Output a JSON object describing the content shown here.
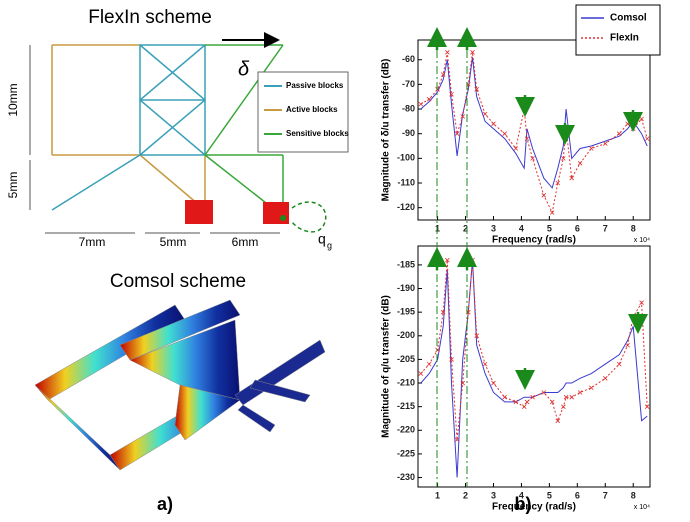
{
  "diagram": {
    "flexin_title": "FlexIn scheme",
    "comsol_title": "Comsol scheme",
    "legend": [
      "Passive blocks",
      "Active blocks",
      "Sensitive blocks"
    ],
    "delta": "δ",
    "dims": [
      "10mm",
      "5mm",
      "7mm",
      "5mm",
      "6mm"
    ],
    "q": "q",
    "q_sub": "g"
  },
  "panels": [
    "a)",
    "b)"
  ],
  "chart_data": [
    {
      "type": "line",
      "ylabel": "Magnitude of δ/u transfer (dB)",
      "xlabel": "Frequency (rad/s)",
      "x_multiplier": "x 10⁴",
      "xlim": [
        0.3,
        8.6
      ],
      "xticks": [
        1,
        2,
        3,
        4,
        5,
        6,
        7,
        8
      ],
      "ylim": [
        -125,
        -52
      ],
      "yticks": [
        -60,
        -70,
        -80,
        -90,
        -100,
        -110,
        -120
      ],
      "legend": "upper right",
      "x": [
        0.4,
        0.7,
        1.0,
        1.2,
        1.35,
        1.5,
        1.7,
        1.9,
        2.1,
        2.25,
        2.4,
        2.7,
        3.0,
        3.4,
        3.8,
        4.1,
        4.2,
        4.4,
        4.8,
        5.1,
        5.3,
        5.5,
        5.6,
        5.8,
        6.1,
        6.5,
        7.0,
        7.5,
        7.8,
        8.0,
        8.3,
        8.5
      ],
      "series": [
        {
          "name": "Comsol",
          "color": "#3a3ad0",
          "linestyle": "solid",
          "marker": "none",
          "values": [
            -80,
            -77,
            -73,
            -68,
            -60,
            -78,
            -99,
            -82,
            -72,
            -59,
            -75,
            -85,
            -88,
            -92,
            -98,
            -104,
            -88,
            -96,
            -108,
            -112,
            -104,
            -95,
            -80,
            -100,
            -96,
            -95,
            -93,
            -91,
            -88,
            -85,
            -90,
            -95
          ]
        },
        {
          "name": "FlexIn",
          "color": "#e03030",
          "linestyle": "dotted",
          "marker": "x",
          "values": [
            -78,
            -76,
            -72,
            -66,
            -57,
            -74,
            -90,
            -83,
            -70,
            -57,
            -72,
            -82,
            -86,
            -90,
            -96,
            -80,
            -92,
            -100,
            -115,
            -122,
            -110,
            -100,
            -88,
            -108,
            -102,
            -96,
            -94,
            -90,
            -86,
            -88,
            -84,
            -92
          ]
        }
      ]
    },
    {
      "type": "line",
      "ylabel": "Magnitude of q/u transfer (dB)",
      "xlabel": "Frequency (rad/s)",
      "x_multiplier": "x 10⁴",
      "xlim": [
        0.3,
        8.6
      ],
      "xticks": [
        1,
        2,
        3,
        4,
        5,
        6,
        7,
        8
      ],
      "ylim": [
        -232,
        -181
      ],
      "yticks": [
        -185,
        -190,
        -195,
        -200,
        -205,
        -210,
        -215,
        -220,
        -225,
        -230
      ],
      "x": [
        0.4,
        0.7,
        1.0,
        1.2,
        1.35,
        1.5,
        1.7,
        1.9,
        2.1,
        2.25,
        2.4,
        2.7,
        3.0,
        3.4,
        3.8,
        4.1,
        4.2,
        4.4,
        4.8,
        5.1,
        5.3,
        5.5,
        5.6,
        5.8,
        6.1,
        6.5,
        7.0,
        7.5,
        7.8,
        8.0,
        8.3,
        8.5
      ],
      "series": [
        {
          "name": "Comsol",
          "color": "#3a3ad0",
          "linestyle": "solid",
          "marker": "none",
          "values": [
            -210,
            -208,
            -205,
            -198,
            -186,
            -210,
            -230,
            -205,
            -195,
            -184,
            -202,
            -208,
            -212,
            -214,
            -214,
            -213,
            -213,
            -213,
            -212,
            -212,
            -212,
            -211,
            -210,
            -210,
            -209,
            -208,
            -206,
            -204,
            -201,
            -198,
            -218,
            -217
          ]
        },
        {
          "name": "FlexIn",
          "color": "#e03030",
          "linestyle": "dotted",
          "marker": "x",
          "values": [
            -208,
            -206,
            -203,
            -195,
            -184,
            -205,
            -222,
            -210,
            -195,
            -184,
            -200,
            -206,
            -210,
            -213,
            -214,
            -215,
            -214,
            -213,
            -212,
            -214,
            -218,
            -215,
            -213,
            -213,
            -212,
            -211,
            -209,
            -206,
            -202,
            -196,
            -193,
            -215
          ]
        }
      ]
    }
  ]
}
